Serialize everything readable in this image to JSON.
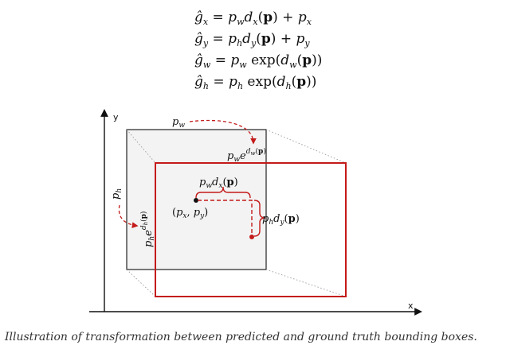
{
  "equations": {
    "gx": "ĝx = pw dx(p) + px",
    "gy": "ĝy = ph dy(p) + py",
    "gw": "ĝw = pw exp(dw(p))",
    "gh": "ĝh = ph exp(dh(p))"
  },
  "diagram": {
    "axis_x_label": "x",
    "axis_y_label": "y",
    "pw_label": "pw",
    "ph_label": "ph",
    "pw_scaled_label": "pw e^dw(p)",
    "ph_scaled_label": "ph e^dh(p)",
    "dx_label": "pw dx(p)",
    "dy_label": "ph dy(p)",
    "center_label": "(px, py)",
    "colors": {
      "predicted_box_fill": "#f3f3f3",
      "predicted_box_stroke": "#222222",
      "ground_truth_stroke": "#c41a1a",
      "arrow_red": "#c41a1a"
    }
  },
  "caption": "Illustration of transformation between predicted and ground truth bounding boxes."
}
